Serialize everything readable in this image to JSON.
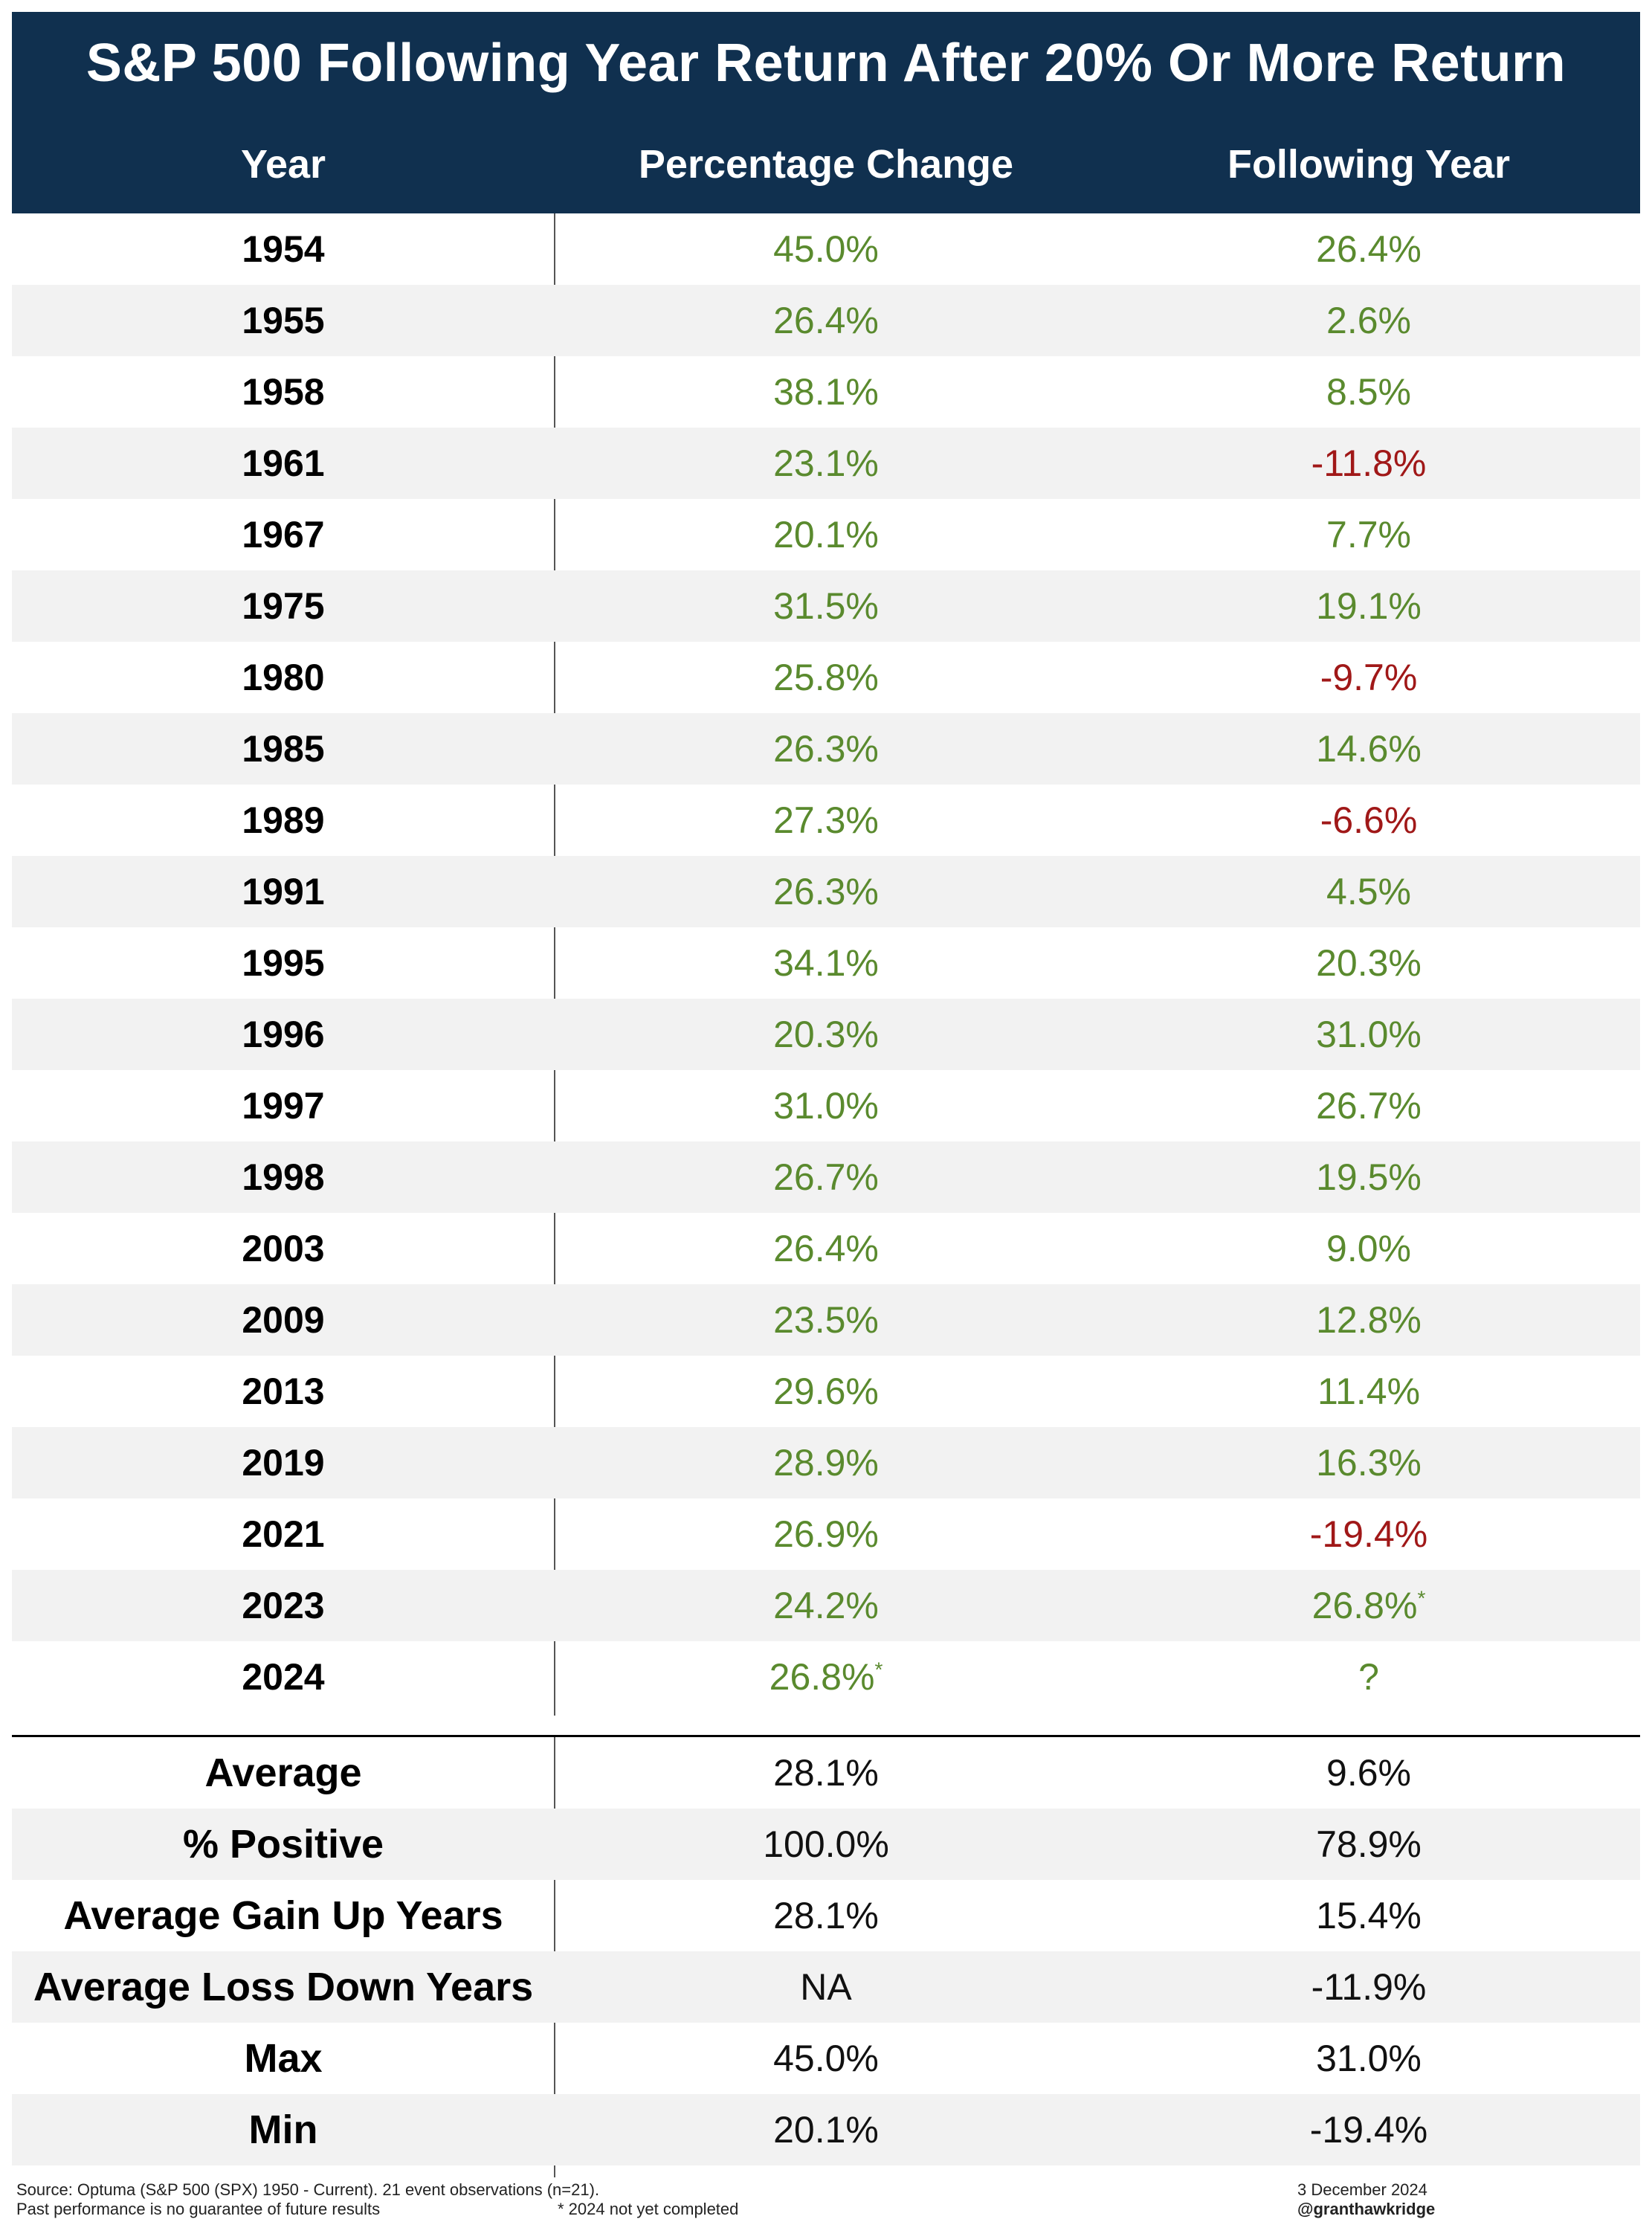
{
  "chart_data": {
    "type": "table",
    "title": "S&P 500 Following Year Return After 20% Or More Return",
    "columns": [
      "Year",
      "Percentage Change",
      "Following Year"
    ],
    "rows": [
      {
        "year": "1954",
        "change": "45.0%",
        "change_mark": "",
        "following": "26.4%",
        "following_mark": "",
        "sign": "positive"
      },
      {
        "year": "1955",
        "change": "26.4%",
        "change_mark": "",
        "following": "2.6%",
        "following_mark": "",
        "sign": "positive"
      },
      {
        "year": "1958",
        "change": "38.1%",
        "change_mark": "",
        "following": "8.5%",
        "following_mark": "",
        "sign": "positive"
      },
      {
        "year": "1961",
        "change": "23.1%",
        "change_mark": "",
        "following": "-11.8%",
        "following_mark": "",
        "sign": "negative"
      },
      {
        "year": "1967",
        "change": "20.1%",
        "change_mark": "",
        "following": "7.7%",
        "following_mark": "",
        "sign": "positive"
      },
      {
        "year": "1975",
        "change": "31.5%",
        "change_mark": "",
        "following": "19.1%",
        "following_mark": "",
        "sign": "positive"
      },
      {
        "year": "1980",
        "change": "25.8%",
        "change_mark": "",
        "following": "-9.7%",
        "following_mark": "",
        "sign": "negative"
      },
      {
        "year": "1985",
        "change": "26.3%",
        "change_mark": "",
        "following": "14.6%",
        "following_mark": "",
        "sign": "positive"
      },
      {
        "year": "1989",
        "change": "27.3%",
        "change_mark": "",
        "following": "-6.6%",
        "following_mark": "",
        "sign": "negative"
      },
      {
        "year": "1991",
        "change": "26.3%",
        "change_mark": "",
        "following": "4.5%",
        "following_mark": "",
        "sign": "positive"
      },
      {
        "year": "1995",
        "change": "34.1%",
        "change_mark": "",
        "following": "20.3%",
        "following_mark": "",
        "sign": "positive"
      },
      {
        "year": "1996",
        "change": "20.3%",
        "change_mark": "",
        "following": "31.0%",
        "following_mark": "",
        "sign": "positive"
      },
      {
        "year": "1997",
        "change": "31.0%",
        "change_mark": "",
        "following": "26.7%",
        "following_mark": "",
        "sign": "positive"
      },
      {
        "year": "1998",
        "change": "26.7%",
        "change_mark": "",
        "following": "19.5%",
        "following_mark": "",
        "sign": "positive"
      },
      {
        "year": "2003",
        "change": "26.4%",
        "change_mark": "",
        "following": "9.0%",
        "following_mark": "",
        "sign": "positive"
      },
      {
        "year": "2009",
        "change": "23.5%",
        "change_mark": "",
        "following": "12.8%",
        "following_mark": "",
        "sign": "positive"
      },
      {
        "year": "2013",
        "change": "29.6%",
        "change_mark": "",
        "following": "11.4%",
        "following_mark": "",
        "sign": "positive"
      },
      {
        "year": "2019",
        "change": "28.9%",
        "change_mark": "",
        "following": "16.3%",
        "following_mark": "",
        "sign": "positive"
      },
      {
        "year": "2021",
        "change": "26.9%",
        "change_mark": "",
        "following": "-19.4%",
        "following_mark": "",
        "sign": "negative"
      },
      {
        "year": "2023",
        "change": "24.2%",
        "change_mark": "",
        "following": "26.8%",
        "following_mark": "*",
        "sign": "positive"
      },
      {
        "year": "2024",
        "change": "26.8%",
        "change_mark": "*",
        "following": "?",
        "following_mark": "",
        "sign": "positive"
      }
    ],
    "summary": [
      {
        "label": "Average",
        "change": "28.1%",
        "following": "9.6%"
      },
      {
        "label": "% Positive",
        "change": "100.0%",
        "following": "78.9%"
      },
      {
        "label": "Average Gain Up Years",
        "change": "28.1%",
        "following": "15.4%"
      },
      {
        "label": "Average Loss Down Years",
        "change": "NA",
        "following": "-11.9%"
      },
      {
        "label": "Max",
        "change": "45.0%",
        "following": "31.0%"
      },
      {
        "label": "Min",
        "change": "20.1%",
        "following": "-19.4%"
      }
    ]
  },
  "footer": {
    "source": "Source: Optuma (S&P 500 (SPX) 1950 - Current). 21 event observations (n=21).",
    "disclaimer": "Past performance is no guarantee of future results",
    "note": "* 2024 not yet completed",
    "date": "3 December 2024",
    "handle": "@granthawkridge"
  },
  "colors": {
    "header_bg": "#10304f",
    "positive": "#5a8a2e",
    "negative": "#a01818",
    "row_shade": "#f2f2f2"
  }
}
